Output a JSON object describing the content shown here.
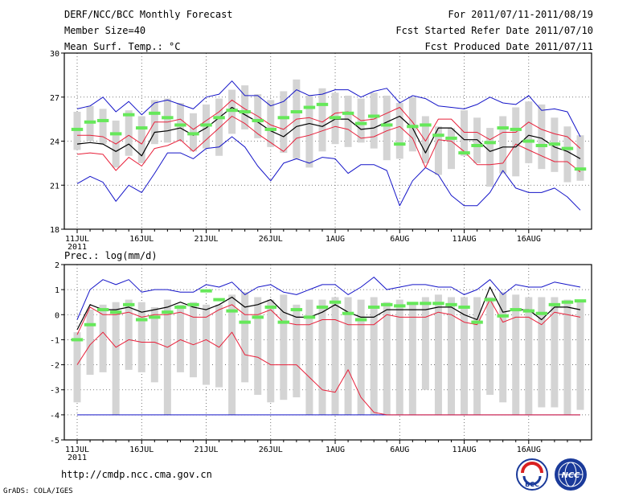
{
  "header": {
    "title": "DERF/NCC/BCC Monthly Forecast",
    "member_size": "Member Size=40",
    "variable": "Mean Surf. Temp.: °C",
    "period": "For 2011/07/11-2011/08/19",
    "refer_date": "Fcst Started Refer Date 2011/07/10",
    "produced_date": "Fcst Produced Date 2011/07/11"
  },
  "footer": {
    "url": "http://cmdp.ncc.cma.gov.cn",
    "credit": "GrADS: COLA/IGES",
    "logo_left": "BCC",
    "logo_right": "NCC"
  },
  "colors": {
    "box": "#d4d4d4",
    "green": "#66e85a",
    "red": "#e8203a",
    "blue": "#1414c8",
    "median": "#000000"
  },
  "chart_data": [
    {
      "type": "box-plume",
      "title": "Mean Surf. Temp.: °C",
      "x_first_date": "2011-07-11",
      "days": 40,
      "xticks": [
        "11JUL",
        "16JUL",
        "21JUL",
        "26JUL",
        "1AUG",
        "6AUG",
        "11AUG",
        "16AUG"
      ],
      "xtick_year": "2011",
      "yticks": [
        18,
        21,
        24,
        27,
        30
      ],
      "ylim": [
        18,
        30
      ],
      "box_low": [
        23.4,
        24.0,
        23.8,
        22.2,
        23.0,
        22.5,
        23.8,
        23.9,
        24.0,
        23.3,
        23.5,
        23.0,
        24.5,
        24.8,
        24.2,
        23.6,
        23.2,
        22.8,
        22.2,
        23.3,
        23.8,
        23.6,
        23.9,
        23.5,
        22.7,
        22.8,
        23.3,
        22.5,
        21.7,
        22.1,
        23.0,
        22.5,
        20.9,
        21.8,
        21.6,
        22.5,
        22.1,
        21.9,
        21.2,
        21.3
      ],
      "box_high": [
        26.0,
        26.4,
        26.2,
        25.4,
        26.1,
        25.7,
        26.8,
        26.9,
        26.6,
        25.9,
        26.5,
        26.9,
        27.5,
        27.8,
        27.2,
        26.8,
        27.4,
        28.2,
        27.1,
        27.6,
        27.3,
        27.1,
        26.9,
        27.3,
        27.1,
        26.6,
        27.0,
        25.7,
        25.0,
        24.9,
        26.1,
        25.6,
        24.9,
        25.7,
        26.3,
        26.7,
        26.5,
        25.6,
        25.0,
        24.4
      ],
      "green": [
        24.8,
        25.3,
        25.4,
        24.5,
        25.8,
        24.9,
        25.9,
        25.6,
        25.1,
        24.5,
        25.1,
        25.6,
        26.1,
        26.0,
        25.4,
        24.8,
        25.6,
        26.0,
        26.3,
        26.5,
        25.6,
        25.9,
        25.2,
        25.7,
        25.1,
        23.8,
        25.0,
        25.1,
        24.4,
        24.2,
        23.2,
        23.7,
        23.9,
        24.9,
        24.8,
        24.0,
        23.7,
        23.8,
        23.5,
        22.1
      ],
      "median": [
        23.8,
        23.9,
        23.8,
        23.3,
        23.8,
        23.0,
        24.6,
        24.7,
        24.9,
        24.4,
        24.9,
        25.6,
        26.3,
        25.8,
        25.3,
        24.7,
        24.3,
        25.0,
        25.2,
        25.0,
        25.5,
        25.5,
        24.8,
        24.9,
        25.3,
        25.7,
        24.9,
        23.2,
        24.9,
        24.9,
        24.1,
        24.1,
        23.3,
        23.6,
        23.6,
        24.4,
        24.2,
        23.6,
        23.3,
        22.8
      ],
      "red_upper": [
        24.4,
        24.4,
        24.3,
        23.8,
        24.4,
        23.8,
        25.3,
        25.3,
        25.5,
        24.8,
        25.4,
        26.0,
        26.8,
        26.2,
        25.7,
        25.1,
        24.8,
        25.5,
        25.6,
        25.3,
        25.9,
        26.0,
        25.4,
        25.5,
        25.9,
        26.3,
        25.3,
        24.0,
        25.5,
        25.5,
        24.6,
        24.6,
        24.1,
        24.6,
        24.6,
        25.3,
        24.8,
        24.5,
        24.3,
        23.5
      ],
      "red_lower": [
        23.1,
        23.2,
        23.1,
        22.0,
        22.9,
        22.3,
        23.5,
        23.7,
        24.1,
        23.3,
        24.1,
        24.9,
        25.7,
        25.2,
        24.5,
        23.9,
        23.3,
        24.2,
        24.4,
        24.7,
        25.0,
        24.8,
        24.2,
        24.3,
        24.7,
        25.0,
        24.2,
        22.2,
        24.1,
        24.0,
        23.3,
        22.4,
        22.4,
        22.5,
        23.8,
        23.4,
        23.0,
        22.6,
        22.6,
        21.9
      ],
      "blue_upper": [
        26.2,
        26.4,
        27.0,
        26.0,
        26.7,
        25.8,
        26.6,
        26.8,
        26.5,
        26.2,
        27.0,
        27.2,
        28.1,
        27.1,
        27.1,
        26.4,
        26.7,
        27.5,
        27.1,
        27.2,
        27.5,
        27.5,
        27.0,
        27.4,
        27.6,
        26.6,
        27.1,
        26.9,
        26.4,
        26.3,
        26.2,
        26.5,
        27.0,
        26.6,
        26.5,
        27.1,
        26.1,
        26.2,
        26.0,
        24.3
      ],
      "blue_lower": [
        21.1,
        21.6,
        21.2,
        19.9,
        21.0,
        20.5,
        21.8,
        23.2,
        23.2,
        22.8,
        23.5,
        23.6,
        24.3,
        23.6,
        22.3,
        21.3,
        22.5,
        22.8,
        22.5,
        22.9,
        22.8,
        21.8,
        22.4,
        22.4,
        22.0,
        19.6,
        21.3,
        22.2,
        21.7,
        20.3,
        19.6,
        19.6,
        20.5,
        22.0,
        20.8,
        20.5,
        20.5,
        20.8,
        20.2,
        19.3
      ]
    },
    {
      "type": "box-plume",
      "title": "Prec.: log(mm/d)",
      "x_first_date": "2011-07-11",
      "days": 40,
      "xticks": [
        "11JUL",
        "16JUL",
        "21JUL",
        "26JUL",
        "1AUG",
        "6AUG",
        "11AUG",
        "16AUG"
      ],
      "xtick_year": "2011",
      "yticks": [
        -5,
        -4,
        -3,
        -2,
        -1,
        0,
        1,
        2
      ],
      "ylim": [
        -5,
        2
      ],
      "box_low": [
        -3.5,
        -2.4,
        -2.3,
        -4.0,
        -2.2,
        -2.3,
        -2.7,
        -4.0,
        -2.3,
        -2.5,
        -2.8,
        -2.9,
        -4.0,
        -2.7,
        -3.2,
        -3.5,
        -3.4,
        -3.3,
        -4.0,
        -4.0,
        -4.0,
        -4.0,
        -4.0,
        -4.0,
        -4.0,
        -4.0,
        -4.0,
        -3.0,
        -4.0,
        -4.0,
        -4.0,
        -4.0,
        -3.2,
        -3.5,
        -4.0,
        -4.0,
        -3.7,
        -3.7,
        -4.0,
        -3.8
      ],
      "box_high": [
        -0.7,
        0.2,
        0.4,
        0.5,
        0.6,
        0.5,
        0.3,
        0.6,
        0.4,
        0.5,
        0.4,
        0.4,
        0.8,
        0.9,
        0.7,
        0.6,
        0.8,
        0.4,
        0.6,
        0.6,
        0.7,
        0.7,
        0.6,
        0.7,
        0.5,
        0.6,
        0.5,
        0.7,
        0.8,
        0.7,
        0.7,
        0.7,
        0.7,
        0.9,
        0.8,
        0.7,
        0.7,
        0.7,
        0.6,
        0.5
      ],
      "green": [
        -1.0,
        -0.4,
        0.2,
        0.1,
        0.4,
        -0.2,
        -0.1,
        0.1,
        0.3,
        0.4,
        0.95,
        0.6,
        0.15,
        -0.3,
        -0.1,
        0.3,
        -0.3,
        0.2,
        -0.1,
        0.3,
        0.5,
        0.05,
        -0.2,
        0.3,
        0.4,
        0.35,
        0.45,
        0.45,
        0.45,
        0.4,
        0.3,
        -0.3,
        0.6,
        -0.05,
        0.2,
        0.15,
        0.05,
        0.4,
        0.5,
        0.55
      ],
      "median": [
        -0.6,
        0.4,
        0.2,
        0.2,
        0.3,
        0.1,
        0.2,
        0.3,
        0.5,
        0.3,
        0.2,
        0.4,
        0.7,
        0.3,
        0.4,
        0.6,
        0.1,
        -0.1,
        -0.1,
        0.1,
        0.4,
        0.1,
        -0.1,
        -0.1,
        0.2,
        0.2,
        0.2,
        0.2,
        0.3,
        0.3,
        0.0,
        -0.2,
        1.1,
        0.1,
        0.2,
        0.2,
        -0.2,
        0.3,
        0.3,
        0.2
      ],
      "red_upper": [
        -0.8,
        0.3,
        0.0,
        0.0,
        0.1,
        -0.1,
        0.0,
        0.0,
        0.1,
        -0.1,
        -0.1,
        0.2,
        0.4,
        0.0,
        0.0,
        0.2,
        -0.3,
        -0.4,
        -0.4,
        -0.2,
        -0.2,
        -0.4,
        -0.4,
        -0.4,
        0.0,
        -0.1,
        -0.1,
        -0.1,
        0.1,
        0.0,
        -0.3,
        -0.4,
        0.6,
        -0.3,
        -0.1,
        -0.1,
        -0.4,
        0.1,
        0.0,
        -0.1
      ],
      "red_lower": [
        -2.0,
        -1.2,
        -0.7,
        -1.3,
        -1.0,
        -1.1,
        -1.1,
        -1.3,
        -1.0,
        -1.2,
        -1.0,
        -1.3,
        -0.7,
        -1.6,
        -1.7,
        -2.0,
        -2.0,
        -2.0,
        -2.5,
        -3.0,
        -3.1,
        -2.2,
        -3.3,
        -3.9,
        -4.0,
        -4.0,
        -4.0,
        -4.0,
        -4.0,
        -4.0,
        -4.0,
        -4.0,
        -4.0,
        -4.0,
        -4.0,
        -4.0,
        -4.0,
        -4.0,
        -4.0,
        -4.0
      ],
      "blue_upper": [
        -0.2,
        1.0,
        1.4,
        1.2,
        1.4,
        0.9,
        1.0,
        1.0,
        0.9,
        0.9,
        1.2,
        1.1,
        1.3,
        0.8,
        1.1,
        1.2,
        0.9,
        0.8,
        1.0,
        1.2,
        1.2,
        0.8,
        1.1,
        1.5,
        1.0,
        1.1,
        1.2,
        1.2,
        1.1,
        1.1,
        0.8,
        1.0,
        1.4,
        0.8,
        1.2,
        1.1,
        1.1,
        1.3,
        1.2,
        1.1
      ],
      "blue_lower": [
        -4.0,
        -4.0,
        -4.0,
        -4.0,
        -4.0,
        -4.0,
        -4.0,
        -4.0,
        -4.0,
        -4.0,
        -4.0,
        -4.0,
        -4.0,
        -4.0,
        -4.0,
        -4.0,
        -4.0,
        -4.0,
        -4.0,
        -4.0,
        -4.0,
        -4.0,
        -4.0,
        -4.0,
        -4.0,
        -4.0,
        -4.0,
        -4.0,
        -4.0,
        -4.0,
        -4.0,
        -4.0,
        -4.0,
        -4.0,
        -4.0,
        -4.0,
        -4.0,
        -4.0,
        -4.0,
        -4.0
      ]
    }
  ]
}
